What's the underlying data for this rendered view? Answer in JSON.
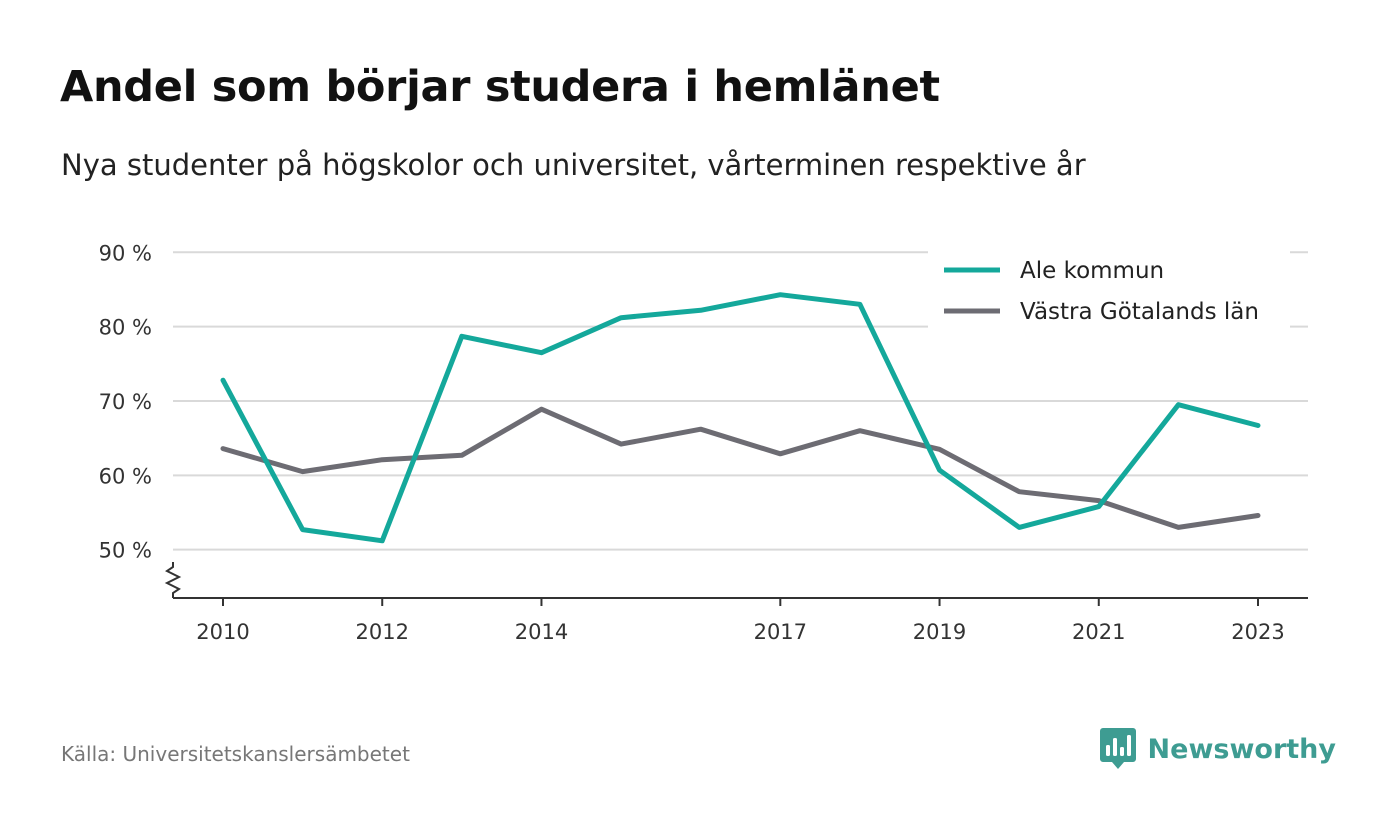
{
  "header": {
    "title": "Andel som börjar studera i hemlänet",
    "subtitle": "Nya studenter på högskolor och universitet, vårterminen respektive år"
  },
  "footer": {
    "source": "Källa: Universitetskanslersämbetet",
    "brand": "Newsworthy",
    "brand_icon": "newsworthy-logo-icon"
  },
  "colors": {
    "ale_kommun": "#14a89b",
    "vastra_gotaland": "#6d6c73",
    "grid": "#d9d9d9",
    "axis": "#333333",
    "brand": "#3e9c92"
  },
  "chart_data": {
    "type": "line",
    "x": [
      2010,
      2011,
      2012,
      2013,
      2014,
      2015,
      2016,
      2017,
      2018,
      2019,
      2020,
      2021,
      2022,
      2023
    ],
    "x_tick_labels": [
      "2010",
      "2012",
      "2014",
      "2017",
      "2019",
      "2021",
      "2023"
    ],
    "y_tick_values": [
      50,
      60,
      70,
      80,
      90
    ],
    "y_tick_labels": [
      "50 %",
      "60 %",
      "70 %",
      "80 %",
      "90 %"
    ],
    "ylim": [
      43.5,
      93
    ],
    "y_axis_break": true,
    "grid": true,
    "legend_position": "top-right",
    "series": [
      {
        "name": "Ale kommun",
        "color": "#14a89b",
        "values": [
          72.8,
          52.7,
          51.2,
          78.7,
          76.5,
          81.2,
          82.2,
          84.3,
          83.0,
          60.7,
          53.0,
          55.8,
          69.5,
          66.7
        ]
      },
      {
        "name": "Västra Götalands län",
        "color": "#6d6c73",
        "values": [
          63.6,
          60.5,
          62.1,
          62.7,
          68.9,
          64.2,
          66.2,
          62.9,
          66.0,
          63.5,
          57.8,
          56.6,
          53.0,
          54.6
        ]
      }
    ]
  }
}
